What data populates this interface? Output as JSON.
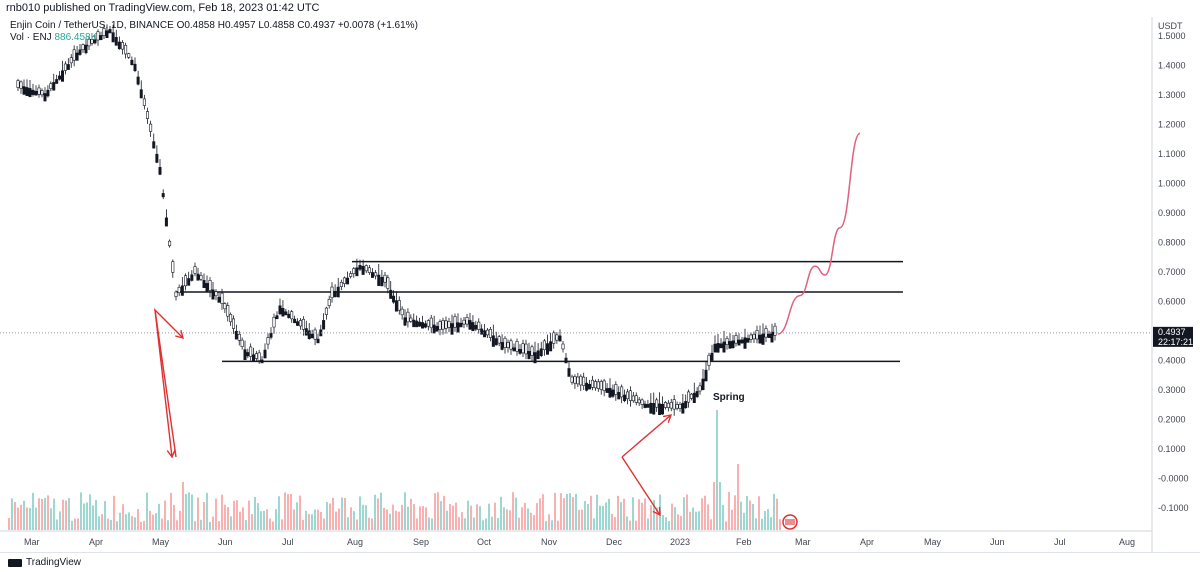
{
  "header": {
    "published": "rnb010 published on TradingView.com, Feb 18, 2023 01:42 UTC"
  },
  "legend": {
    "symbol": "Enjin Coin / TetherUS, 1D, BINANCE",
    "open": "O0.4858",
    "high": "H0.4957",
    "low": "L0.4858",
    "close": "C0.4937",
    "change": "+0.0078 (+1.61%)",
    "volume_label": "Vol · ENJ",
    "volume_value": "886.458K"
  },
  "footer": {
    "brand": "TradingView"
  },
  "colors": {
    "up": "#26a69a",
    "down": "#ef5350",
    "candle": "#131722",
    "projection": "#e0607e",
    "arrow": "#e03030",
    "price_tag": "#131722"
  },
  "chart_data": {
    "type": "candlestick",
    "currency": "USDT",
    "y_ticks": [
      "1.5000",
      "1.4000",
      "1.3000",
      "1.2000",
      "1.1000",
      "1.0000",
      "0.9000",
      "0.8000",
      "0.7000",
      "0.6000",
      "0.5000",
      "0.4000",
      "0.3000",
      "0.2000",
      "0.1000",
      "-0.0000",
      "-0.1000"
    ],
    "ylim": [
      -0.15,
      1.52
    ],
    "x_ticks": [
      "Mar",
      "Apr",
      "May",
      "Jun",
      "Jul",
      "Aug",
      "Sep",
      "Oct",
      "Nov",
      "Dec",
      "2023",
      "Feb",
      "Mar",
      "Apr",
      "May",
      "Jun",
      "Jul",
      "Aug"
    ],
    "last_price": "0.4937",
    "countdown": "22:17:21",
    "annotation": "Spring",
    "horizontal_levels": [
      {
        "price": 0.735,
        "from": "Aug",
        "to": "Apr"
      },
      {
        "price": 0.632,
        "from": "May",
        "to": "Apr"
      },
      {
        "price": 0.397,
        "from": "Jun",
        "to": "Apr"
      }
    ],
    "price_path": [
      {
        "date": "Mar",
        "close": 1.33
      },
      {
        "date": "Mar",
        "close": 1.3
      },
      {
        "date": "Apr",
        "close": 1.45
      },
      {
        "date": "Apr",
        "close": 1.52
      },
      {
        "date": "Apr",
        "close": 1.4
      },
      {
        "date": "May",
        "close": 1.05
      },
      {
        "date": "May",
        "close": 0.62
      },
      {
        "date": "May",
        "close": 0.7
      },
      {
        "date": "Jun",
        "close": 0.6
      },
      {
        "date": "Jun",
        "close": 0.43
      },
      {
        "date": "Jun",
        "close": 0.4
      },
      {
        "date": "Jul",
        "close": 0.58
      },
      {
        "date": "Jul",
        "close": 0.47
      },
      {
        "date": "Aug",
        "close": 0.62
      },
      {
        "date": "Aug",
        "close": 0.72
      },
      {
        "date": "Aug",
        "close": 0.67
      },
      {
        "date": "Sep",
        "close": 0.54
      },
      {
        "date": "Sep",
        "close": 0.51
      },
      {
        "date": "Oct",
        "close": 0.53
      },
      {
        "date": "Oct",
        "close": 0.45
      },
      {
        "date": "Nov",
        "close": 0.42
      },
      {
        "date": "Nov",
        "close": 0.48
      },
      {
        "date": "Nov",
        "close": 0.33
      },
      {
        "date": "Dec",
        "close": 0.3
      },
      {
        "date": "Dec",
        "close": 0.25
      },
      {
        "date": "2023",
        "close": 0.24
      },
      {
        "date": "2023",
        "close": 0.3
      },
      {
        "date": "2023",
        "close": 0.45
      },
      {
        "date": "Feb",
        "close": 0.47
      },
      {
        "date": "Feb",
        "close": 0.4937
      }
    ],
    "projection": [
      {
        "date": "Feb",
        "price": 0.49
      },
      {
        "date": "Mar",
        "price": 0.62
      },
      {
        "date": "Mar",
        "price": 0.72
      },
      {
        "date": "Mar",
        "price": 0.69
      },
      {
        "date": "Mar",
        "price": 0.85
      },
      {
        "date": "Apr",
        "price": 1.17
      }
    ],
    "volume_spikes": [
      {
        "date": "May",
        "volume": 0.4
      },
      {
        "date": "Aug",
        "volume": 0.35
      },
      {
        "date": "Nov",
        "volume": 0.3
      },
      {
        "date": "2023",
        "volume": 1.0
      },
      {
        "date": "Feb",
        "volume": 0.55
      }
    ]
  }
}
